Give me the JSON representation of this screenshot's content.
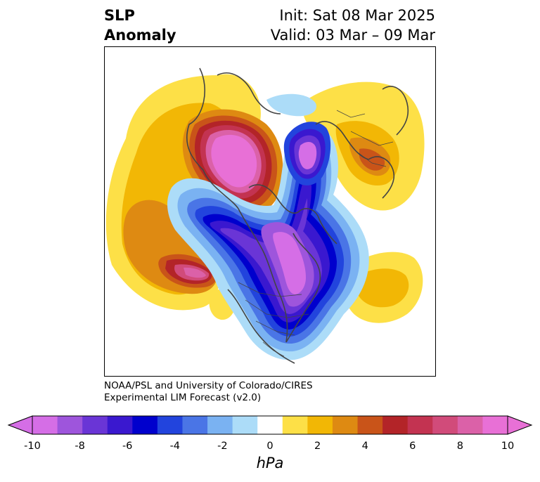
{
  "header": {
    "title_line1": "SLP",
    "title_line2": "Anomaly",
    "init": "Init: Sat 08 Mar 2025",
    "valid": "Valid: 03 Mar – 09 Mar"
  },
  "credit": {
    "line1": "NOAA/PSL and University of Colorado/CIRES",
    "line2": "Experimental LIM Forecast (v2.0)"
  },
  "colorbar": {
    "unit": "hPa",
    "tick_labels": [
      "-10",
      "-8",
      "-6",
      "-4",
      "-2",
      "0",
      "2",
      "4",
      "6",
      "8",
      "10"
    ],
    "levels": [
      -10,
      -9,
      -8,
      -7,
      -6,
      -5,
      -4,
      -3,
      -2,
      -1,
      1,
      2,
      3,
      4,
      5,
      6,
      7,
      8,
      9,
      10
    ],
    "colors": [
      "#d56ee6",
      "#9e55dc",
      "#6a35d6",
      "#3a18cf",
      "#0000cd",
      "#2244dd",
      "#4a75e6",
      "#7ab2f2",
      "#acdcf8",
      "#ffffff",
      "#fde047",
      "#f2b705",
      "#de8a12",
      "#c95419",
      "#b32428",
      "#c33351",
      "#d14b7a",
      "#db61a8",
      "#e870d6"
    ],
    "under_color": "#d56ee6",
    "over_color": "#e870d6"
  },
  "map": {
    "projection": "polar stereographic, North Pole",
    "field": "sea level pressure anomaly"
  }
}
